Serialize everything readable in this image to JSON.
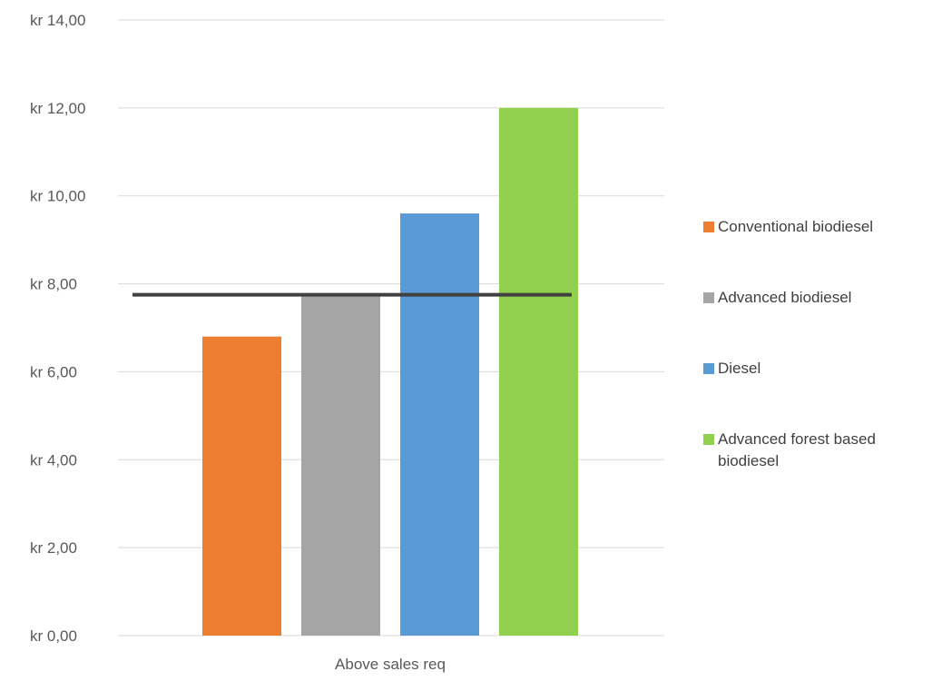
{
  "chart_data": {
    "type": "bar",
    "title": "",
    "xlabel": "",
    "ylabel": "",
    "categories": [
      "Above sales req"
    ],
    "ylim": [
      0,
      14
    ],
    "y_ticks": [
      "kr 0,00",
      "kr 2,00",
      "kr 4,00",
      "kr 6,00",
      "kr 8,00",
      "kr 10,00",
      "kr 12,00",
      "kr 14,00"
    ],
    "grid": true,
    "legend_position": "right",
    "series": [
      {
        "name": "Conventional biodiesel",
        "values": [
          6.8
        ],
        "color": "#ED7D31"
      },
      {
        "name": "Advanced biodiesel",
        "values": [
          7.75
        ],
        "color": "#A5A5A5"
      },
      {
        "name": "Diesel",
        "values": [
          9.6
        ],
        "color": "#5B9BD5"
      },
      {
        "name": "Advanced forest based biodiesel",
        "values": [
          12.0
        ],
        "color": "#92D050"
      }
    ],
    "reference_line": {
      "value": 7.75,
      "color": "#404040"
    }
  }
}
